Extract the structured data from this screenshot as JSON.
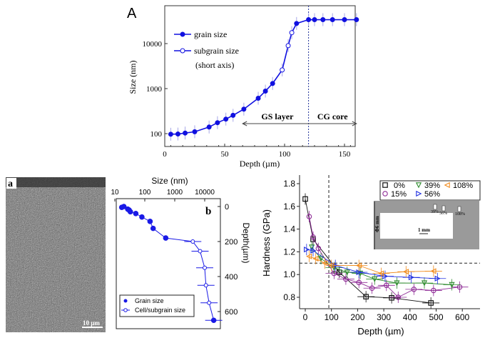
{
  "chart_data": [
    {
      "panel": "A",
      "type": "line",
      "xlabel": "Depth  (µm)",
      "ylabel": "Size (nm)",
      "xlim": [
        0,
        165
      ],
      "ylim": [
        50,
        60000
      ],
      "yscale": "log",
      "xticks": [
        0,
        50,
        100,
        150
      ],
      "yticks": [
        100,
        1000,
        10000
      ],
      "yticklabels": [
        "100",
        "1000",
        "10000"
      ],
      "colors": {
        "series": "#1010e0",
        "errorbar": "#a8a8e8"
      },
      "series": [
        {
          "name": "grain size",
          "marker": "filled-circle",
          "x": [
            5,
            11,
            17,
            25,
            37,
            44,
            51,
            57,
            66,
            78,
            84,
            90,
            110,
            120,
            125,
            132,
            140,
            150,
            160
          ],
          "y": [
            97,
            98,
            103,
            110,
            140,
            175,
            210,
            255,
            350,
            610,
            880,
            1300,
            28000,
            34000,
            34000,
            34000,
            34000,
            34000,
            34000
          ]
        },
        {
          "name": "subgrain size",
          "marker": "open-circle",
          "x": [
            98,
            103,
            106
          ],
          "y": [
            2600,
            9000,
            17500
          ]
        }
      ],
      "legend_note": "(short axis)",
      "annotations": {
        "vline_x": 120,
        "region_left": "GS layer",
        "region_right": "CG core"
      }
    },
    {
      "panel": "b",
      "type": "scatter",
      "xlabel": "Size (nm)",
      "ylabel": "Depth(µm)",
      "xscale": "log",
      "xlim": [
        10,
        30000
      ],
      "ylim": [
        -30,
        700
      ],
      "xticks": [
        10,
        100,
        1000,
        10000
      ],
      "xticklabels": [
        "10",
        "100",
        "1000",
        "10000"
      ],
      "yticks": [
        0,
        200,
        400,
        600
      ],
      "yinverted": true,
      "colors": {
        "series": "#1a1ae6"
      },
      "series": [
        {
          "name": "Grain size",
          "marker": "filled-circle",
          "x": [
            17,
            20,
            27,
            30,
            33,
            50,
            80,
            150,
            190,
            500,
            20000
          ],
          "y": [
            5,
            0,
            15,
            20,
            30,
            40,
            60,
            85,
            125,
            180,
            650
          ]
        },
        {
          "name": "Cell/subgrain size",
          "marker": "open-circle",
          "x": [
            4000,
            7000,
            10000,
            11000,
            14000
          ],
          "y": [
            200,
            255,
            350,
            450,
            550
          ]
        }
      ]
    },
    {
      "panel": "hardness",
      "type": "scatter",
      "xlabel": "Depth (µm)",
      "ylabel": "Hardness (GPa)",
      "xlim": [
        -25,
        640
      ],
      "ylim": [
        0.7,
        1.85
      ],
      "xticks": [
        0,
        100,
        200,
        300,
        400,
        500,
        600
      ],
      "yticks": [
        0.8,
        1.0,
        1.2,
        1.4,
        1.6,
        1.8
      ],
      "yticklabels": [
        "0.8",
        "1.0",
        "1.2",
        "1.4",
        "1.6",
        "1.8"
      ],
      "reference_lines": {
        "hline_y": 1.1,
        "vline_x": 90
      },
      "legend_placement": "top-right",
      "series": [
        {
          "name": "0%",
          "marker": "square",
          "color": "#111111",
          "x": [
            0,
            30,
            130,
            232,
            330,
            480
          ],
          "y": [
            1.665,
            1.31,
            1.02,
            0.805,
            0.795,
            0.75
          ]
        },
        {
          "name": "15%",
          "marker": "circle",
          "color": "#8e2a96",
          "x": [
            15,
            30,
            50,
            110,
            155,
            205,
            255,
            310,
            355,
            415,
            490,
            590
          ],
          "y": [
            1.51,
            1.33,
            1.23,
            1.01,
            0.96,
            0.93,
            0.88,
            0.905,
            0.8,
            0.87,
            0.86,
            0.89
          ]
        },
        {
          "name": "39%",
          "marker": "triangle-down",
          "color": "#2e8b2e",
          "x": [
            25,
            60,
            110,
            160,
            210,
            265,
            350,
            455,
            560
          ],
          "y": [
            1.24,
            1.14,
            1.06,
            1.02,
            1.01,
            0.96,
            0.925,
            0.925,
            0.91
          ]
        },
        {
          "name": "56%",
          "marker": "triangle-right",
          "color": "#2030e0",
          "x": [
            5,
            30,
            115,
            205,
            305,
            405,
            505
          ],
          "y": [
            1.22,
            1.21,
            1.08,
            1.02,
            0.985,
            0.975,
            0.965
          ]
        },
        {
          "name": "108%",
          "marker": "triangle-left",
          "color": "#f08c1e",
          "x": [
            15,
            40,
            75,
            100,
            205,
            290,
            385,
            490
          ],
          "y": [
            1.16,
            1.14,
            1.1,
            1.08,
            1.08,
            1.01,
            1.025,
            1.03
          ]
        }
      ],
      "inset": {
        "diameter_label": "Φ6 mm",
        "scale_label": "1 mm",
        "markers": [
          "39%",
          "56%",
          "108%"
        ]
      }
    }
  ],
  "micrograph": {
    "panel": "a",
    "scale_bar": "10 µm"
  }
}
